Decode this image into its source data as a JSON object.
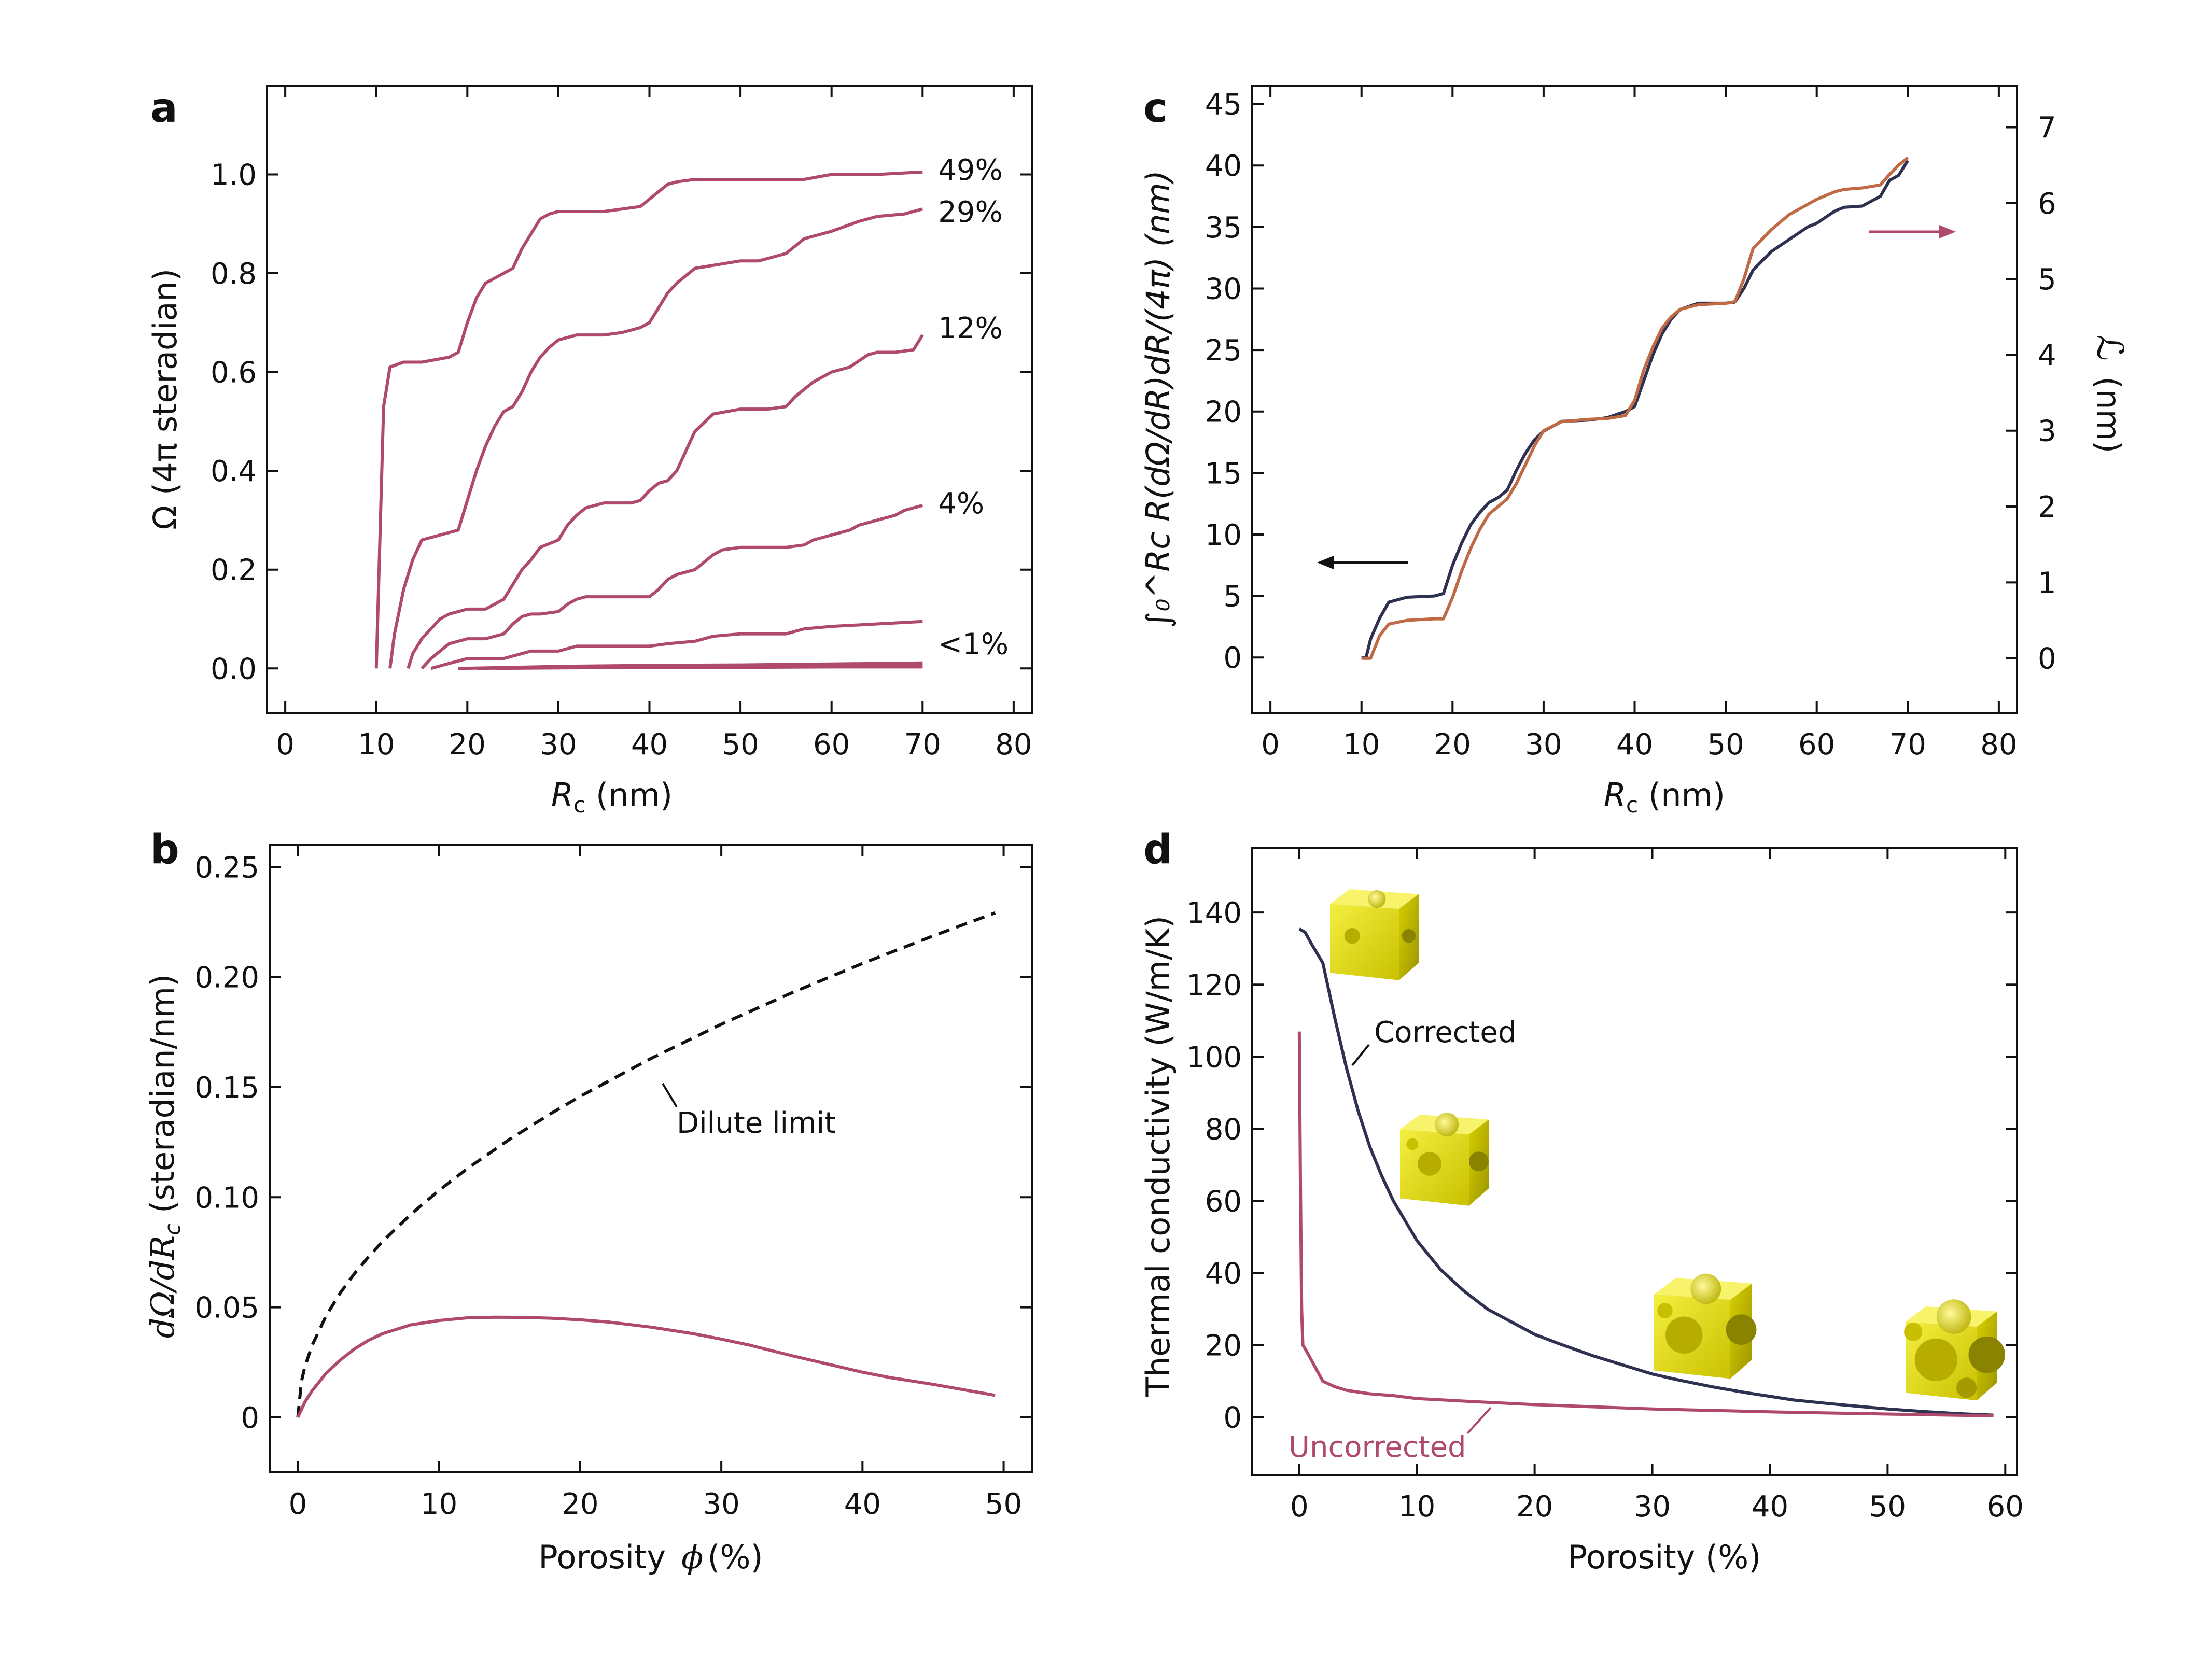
{
  "colors": {
    "rose": "#b04a6c",
    "navy": "#2f3150",
    "copper": "#c06a45",
    "black": "#111111",
    "cube_yellow": "#e8e000"
  },
  "chart_data": [
    {
      "panel": "a",
      "type": "line",
      "title": "",
      "xlabel_symbol": "R",
      "xlabel_sub": "c",
      "xlabel_unit": "(nm)",
      "ylabel": "Ω (4π steradian)",
      "xlim": [
        -2,
        82
      ],
      "ylim": [
        -0.09,
        1.18
      ],
      "xticks": [
        0,
        10,
        20,
        30,
        40,
        50,
        60,
        70,
        80
      ],
      "yticks": [
        0.0,
        0.2,
        0.4,
        0.6,
        0.8,
        1.0
      ],
      "ytick_labels": [
        "0.0",
        "0.2",
        "0.4",
        "0.6",
        "0.8",
        "1.0"
      ],
      "series": [
        {
          "name": "49%",
          "x": [
            10,
            10.8,
            11.5,
            13,
            15,
            18,
            19,
            20,
            21,
            22,
            24,
            25,
            26,
            27,
            28,
            29,
            30,
            32,
            35,
            37,
            39,
            40,
            41,
            42,
            43,
            45,
            50,
            55,
            57,
            60,
            65,
            70
          ],
          "y": [
            0,
            0.53,
            0.61,
            0.62,
            0.62,
            0.63,
            0.64,
            0.7,
            0.75,
            0.78,
            0.8,
            0.81,
            0.85,
            0.88,
            0.91,
            0.92,
            0.925,
            0.925,
            0.925,
            0.93,
            0.935,
            0.95,
            0.965,
            0.98,
            0.985,
            0.99,
            0.99,
            0.99,
            0.99,
            1.0,
            1.0,
            1.005
          ]
        },
        {
          "name": "29%",
          "x": [
            11.5,
            12,
            13,
            14,
            15,
            17,
            19,
            20,
            21,
            22,
            23,
            24,
            25,
            26,
            27,
            28,
            29,
            30,
            32,
            35,
            37,
            39,
            40,
            41,
            42,
            43,
            45,
            50,
            51,
            52,
            53,
            55,
            57,
            60,
            63,
            65,
            68,
            70
          ],
          "y": [
            0,
            0.07,
            0.16,
            0.22,
            0.26,
            0.27,
            0.28,
            0.34,
            0.4,
            0.45,
            0.49,
            0.52,
            0.53,
            0.56,
            0.6,
            0.63,
            0.65,
            0.665,
            0.675,
            0.675,
            0.68,
            0.69,
            0.7,
            0.73,
            0.76,
            0.78,
            0.81,
            0.825,
            0.825,
            0.825,
            0.83,
            0.84,
            0.87,
            0.885,
            0.905,
            0.915,
            0.92,
            0.93
          ]
        },
        {
          "name": "12%",
          "x": [
            13.5,
            14,
            15,
            16,
            17,
            18,
            20,
            22,
            24,
            25,
            26,
            27,
            28,
            30,
            31,
            32,
            33,
            35,
            37,
            38,
            39,
            40,
            41,
            42,
            43,
            44,
            45,
            47,
            50,
            53,
            55,
            56,
            57,
            58,
            60,
            62,
            64,
            65,
            67,
            69,
            70
          ],
          "y": [
            0,
            0.03,
            0.06,
            0.08,
            0.1,
            0.11,
            0.12,
            0.12,
            0.14,
            0.17,
            0.2,
            0.22,
            0.245,
            0.26,
            0.29,
            0.31,
            0.325,
            0.335,
            0.335,
            0.335,
            0.34,
            0.36,
            0.375,
            0.38,
            0.4,
            0.44,
            0.48,
            0.515,
            0.525,
            0.525,
            0.53,
            0.55,
            0.565,
            0.58,
            0.6,
            0.61,
            0.635,
            0.64,
            0.64,
            0.645,
            0.675
          ]
        },
        {
          "name": "4%",
          "x": [
            15,
            15.5,
            16,
            17,
            18,
            19,
            20,
            22,
            24,
            25,
            26,
            27,
            28,
            30,
            31,
            32,
            33,
            35,
            37,
            40,
            41,
            42,
            43,
            45,
            47,
            48,
            50,
            53,
            55,
            57,
            58,
            60,
            62,
            63,
            65,
            67,
            68,
            70
          ],
          "y": [
            0,
            0.01,
            0.02,
            0.035,
            0.05,
            0.055,
            0.06,
            0.06,
            0.07,
            0.09,
            0.105,
            0.11,
            0.11,
            0.115,
            0.13,
            0.14,
            0.145,
            0.145,
            0.145,
            0.145,
            0.16,
            0.18,
            0.19,
            0.2,
            0.23,
            0.24,
            0.245,
            0.245,
            0.245,
            0.25,
            0.26,
            0.27,
            0.28,
            0.29,
            0.3,
            0.31,
            0.32,
            0.33
          ]
        },
        {
          "name": "",
          "x": [
            16,
            17,
            18,
            19,
            20,
            24,
            25,
            26,
            27,
            30,
            31,
            32,
            40,
            42,
            45,
            47,
            50,
            55,
            57,
            60,
            65,
            70
          ],
          "y": [
            0,
            0.005,
            0.01,
            0.015,
            0.02,
            0.02,
            0.025,
            0.03,
            0.035,
            0.035,
            0.04,
            0.045,
            0.045,
            0.05,
            0.055,
            0.065,
            0.07,
            0.07,
            0.08,
            0.085,
            0.09,
            0.095
          ]
        },
        {
          "name": "<1%",
          "x": [
            19,
            25,
            30,
            40,
            50,
            60,
            70
          ],
          "y": [
            0,
            0.002,
            0.004,
            0.006,
            0.007,
            0.009,
            0.011
          ]
        },
        {
          "name": "",
          "x": [
            21,
            30,
            40,
            50,
            60,
            70
          ],
          "y": [
            0,
            0.002,
            0.003,
            0.004,
            0.005,
            0.006
          ]
        },
        {
          "name": "",
          "x": [
            23,
            30,
            40,
            50,
            60,
            70
          ],
          "y": [
            0,
            0.001,
            0.002,
            0.002,
            0.003,
            0.003
          ]
        }
      ],
      "line_labels": [
        "49%",
        "29%",
        "12%",
        "4%",
        "<1%"
      ],
      "line_label_y": [
        1.01,
        0.925,
        0.69,
        0.335,
        0.05
      ]
    },
    {
      "panel": "b",
      "type": "line",
      "xlabel": "Porosity",
      "xlabel_symbol": "ϕ",
      "xlabel_unit": "(%)",
      "ylabel_math": "dΩ/dR",
      "ylabel_sub": "c",
      "ylabel_unit": "(steradian/nm)",
      "xlim": [
        -2,
        52
      ],
      "ylim": [
        -0.025,
        0.26
      ],
      "xticks": [
        0,
        10,
        20,
        30,
        40,
        50
      ],
      "yticks": [
        0,
        0.05,
        0.1,
        0.15,
        0.2,
        0.25
      ],
      "ytick_labels": [
        "0",
        "0.05",
        "0.10",
        "0.15",
        "0.20",
        "0.25"
      ],
      "series": [
        {
          "name": "Dilute limit",
          "style": "dashed",
          "x": [
            0,
            0.25,
            0.5,
            1,
            2,
            3,
            4,
            5,
            6,
            8,
            10,
            12,
            15,
            18,
            20,
            25,
            30,
            35,
            40,
            45,
            49.4
          ],
          "y": [
            0,
            0.0163,
            0.0231,
            0.0326,
            0.0461,
            0.0565,
            0.0652,
            0.0729,
            0.0799,
            0.0922,
            0.1031,
            0.113,
            0.1263,
            0.1383,
            0.1458,
            0.163,
            0.1786,
            0.1929,
            0.2062,
            0.2187,
            0.2292
          ]
        },
        {
          "name": "",
          "style": "solid",
          "x": [
            0,
            0.5,
            1,
            2,
            3,
            4,
            5,
            6,
            8,
            10,
            12,
            14,
            16,
            18,
            20,
            22,
            25,
            28,
            30,
            32,
            35,
            38,
            40,
            42,
            45,
            49.4
          ],
          "y": [
            0,
            0.007,
            0.012,
            0.02,
            0.026,
            0.031,
            0.035,
            0.038,
            0.042,
            0.044,
            0.0452,
            0.0455,
            0.0454,
            0.045,
            0.0443,
            0.0433,
            0.041,
            0.038,
            0.0355,
            0.0328,
            0.028,
            0.0235,
            0.0205,
            0.018,
            0.015,
            0.01
          ]
        }
      ],
      "annotation": "Dilute limit"
    },
    {
      "panel": "c",
      "type": "line",
      "xlabel_symbol": "R",
      "xlabel_sub": "c",
      "xlabel_unit": "(nm)",
      "ylabel_left": "∫₀^Rc R(dΩ/dR)dR/(4π) (nm)",
      "ylabel_right_symbol": "ℒ",
      "ylabel_right_unit": "(nm)",
      "xlim": [
        -2,
        82
      ],
      "ylim_left": [
        -4.5,
        46.5
      ],
      "ylim_right": [
        -0.72,
        7.55
      ],
      "xticks": [
        0,
        10,
        20,
        30,
        40,
        50,
        60,
        70,
        80
      ],
      "yticks_left": [
        0,
        5,
        10,
        15,
        20,
        25,
        30,
        35,
        40,
        45
      ],
      "yticks_right": [
        0,
        1,
        2,
        3,
        4,
        5,
        6,
        7
      ],
      "series": [
        {
          "name": "left",
          "axis": "left",
          "color_key": "navy",
          "x": [
            10,
            10.5,
            11,
            12,
            13,
            15,
            18,
            19,
            20,
            21,
            22,
            23,
            24,
            25,
            26,
            27,
            28,
            29,
            30,
            32,
            35,
            37,
            39,
            40,
            41,
            42,
            43,
            44,
            45,
            47,
            50,
            51,
            52,
            53,
            55,
            57,
            59,
            60,
            62,
            63,
            65,
            67,
            68,
            69,
            70
          ],
          "y": [
            0,
            0,
            1.5,
            3.2,
            4.5,
            4.9,
            5.0,
            5.2,
            7.5,
            9.3,
            10.8,
            11.8,
            12.6,
            13.0,
            13.6,
            15.2,
            16.6,
            17.7,
            18.4,
            19.2,
            19.3,
            19.5,
            20.0,
            20.4,
            22.5,
            24.6,
            26.3,
            27.5,
            28.3,
            28.8,
            28.8,
            28.9,
            30.0,
            31.5,
            33.0,
            34.0,
            35.0,
            35.3,
            36.3,
            36.6,
            36.7,
            37.5,
            38.8,
            39.2,
            40.4
          ]
        },
        {
          "name": "right",
          "axis": "right",
          "color_key": "copper",
          "x": [
            10,
            11,
            12,
            13,
            15,
            18,
            19,
            20,
            21,
            22,
            23,
            24,
            25,
            26,
            27,
            28,
            29,
            30,
            32,
            35,
            37,
            39,
            40,
            41,
            42,
            43,
            44,
            45,
            47,
            50,
            51,
            52,
            53,
            55,
            57,
            60,
            62,
            63,
            65,
            67,
            68,
            69,
            70
          ],
          "y": [
            0,
            0,
            0.3,
            0.45,
            0.5,
            0.52,
            0.52,
            0.8,
            1.15,
            1.45,
            1.7,
            1.9,
            2.0,
            2.1,
            2.3,
            2.55,
            2.8,
            3.0,
            3.12,
            3.15,
            3.16,
            3.2,
            3.4,
            3.8,
            4.1,
            4.35,
            4.5,
            4.6,
            4.66,
            4.68,
            4.7,
            5.0,
            5.4,
            5.65,
            5.85,
            6.05,
            6.15,
            6.18,
            6.2,
            6.24,
            6.38,
            6.5,
            6.6
          ]
        }
      ]
    },
    {
      "panel": "d",
      "type": "line",
      "xlabel": "Porosity (%)",
      "ylabel": "Thermal conductivity (W/m/K)",
      "xlim": [
        -4,
        61
      ],
      "ylim": [
        -16,
        158
      ],
      "xticks": [
        0,
        10,
        20,
        30,
        40,
        50,
        60
      ],
      "yticks": [
        0,
        20,
        40,
        60,
        80,
        100,
        120,
        140
      ],
      "series": [
        {
          "name": "Corrected",
          "color_key": "navy",
          "x": [
            0,
            0.5,
            1,
            2,
            3,
            4,
            5,
            6,
            7,
            8,
            10,
            12,
            14,
            16,
            18,
            20,
            22,
            25,
            28,
            30,
            32,
            35,
            38,
            40,
            42,
            45,
            48,
            50,
            53,
            56,
            59
          ],
          "y": [
            135.5,
            134.5,
            131.5,
            126,
            111,
            97,
            85,
            75,
            67,
            60,
            49,
            41,
            35,
            30,
            26.5,
            23,
            20.5,
            17,
            14,
            12,
            10.5,
            8.5,
            6.8,
            5.8,
            4.8,
            3.8,
            2.9,
            2.3,
            1.6,
            1.0,
            0.6
          ]
        },
        {
          "name": "Uncorrected",
          "color_key": "rose",
          "x": [
            0,
            0.1,
            0.2,
            0.3,
            0.5,
            1,
            1.5,
            2,
            3,
            4,
            5,
            6,
            8,
            10,
            15,
            20,
            30,
            40,
            50,
            59
          ],
          "y": [
            107,
            65,
            30,
            20,
            19,
            16,
            13,
            10,
            8.5,
            7.5,
            7,
            6.5,
            6,
            5.2,
            4.3,
            3.5,
            2.3,
            1.5,
            0.9,
            0.4
          ]
        }
      ],
      "annotations": [
        "Corrected",
        "Uncorrected"
      ]
    }
  ]
}
